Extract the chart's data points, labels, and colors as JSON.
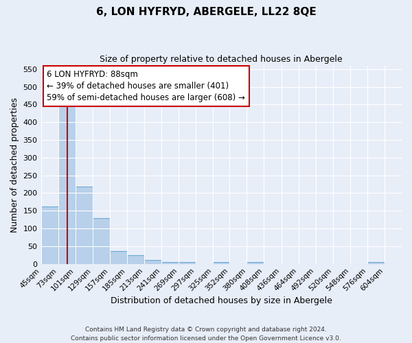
{
  "title": "6, LON HYFRYD, ABERGELE, LL22 8QE",
  "subtitle": "Size of property relative to detached houses in Abergele",
  "xlabel": "Distribution of detached houses by size in Abergele",
  "ylabel": "Number of detached properties",
  "bar_color": "#b8d0ea",
  "bar_edge_color": "#6aaad4",
  "background_color": "#e8eef8",
  "grid_color": "#ffffff",
  "bin_labels": [
    "45sqm",
    "73sqm",
    "101sqm",
    "129sqm",
    "157sqm",
    "185sqm",
    "213sqm",
    "241sqm",
    "269sqm",
    "297sqm",
    "325sqm",
    "352sqm",
    "380sqm",
    "408sqm",
    "436sqm",
    "464sqm",
    "492sqm",
    "520sqm",
    "548sqm",
    "576sqm",
    "604sqm"
  ],
  "bin_edges": [
    45,
    73,
    101,
    129,
    157,
    185,
    213,
    241,
    269,
    297,
    325,
    352,
    380,
    408,
    436,
    464,
    492,
    520,
    548,
    576,
    604,
    632
  ],
  "bar_heights": [
    163,
    447,
    219,
    130,
    36,
    25,
    11,
    6,
    6,
    0,
    5,
    0,
    6,
    0,
    0,
    0,
    0,
    0,
    0,
    5,
    0
  ],
  "red_line_x": 88,
  "ylim": [
    0,
    560
  ],
  "yticks": [
    0,
    50,
    100,
    150,
    200,
    250,
    300,
    350,
    400,
    450,
    500,
    550
  ],
  "annotation_text": "6 LON HYFRYD: 88sqm\n← 39% of detached houses are smaller (401)\n59% of semi-detached houses are larger (608) →",
  "annotation_box_color": "#ffffff",
  "annotation_border_color": "#cc0000",
  "footer_line1": "Contains HM Land Registry data © Crown copyright and database right 2024.",
  "footer_line2": "Contains public sector information licensed under the Open Government Licence v3.0.",
  "title_fontsize": 11,
  "subtitle_fontsize": 9
}
